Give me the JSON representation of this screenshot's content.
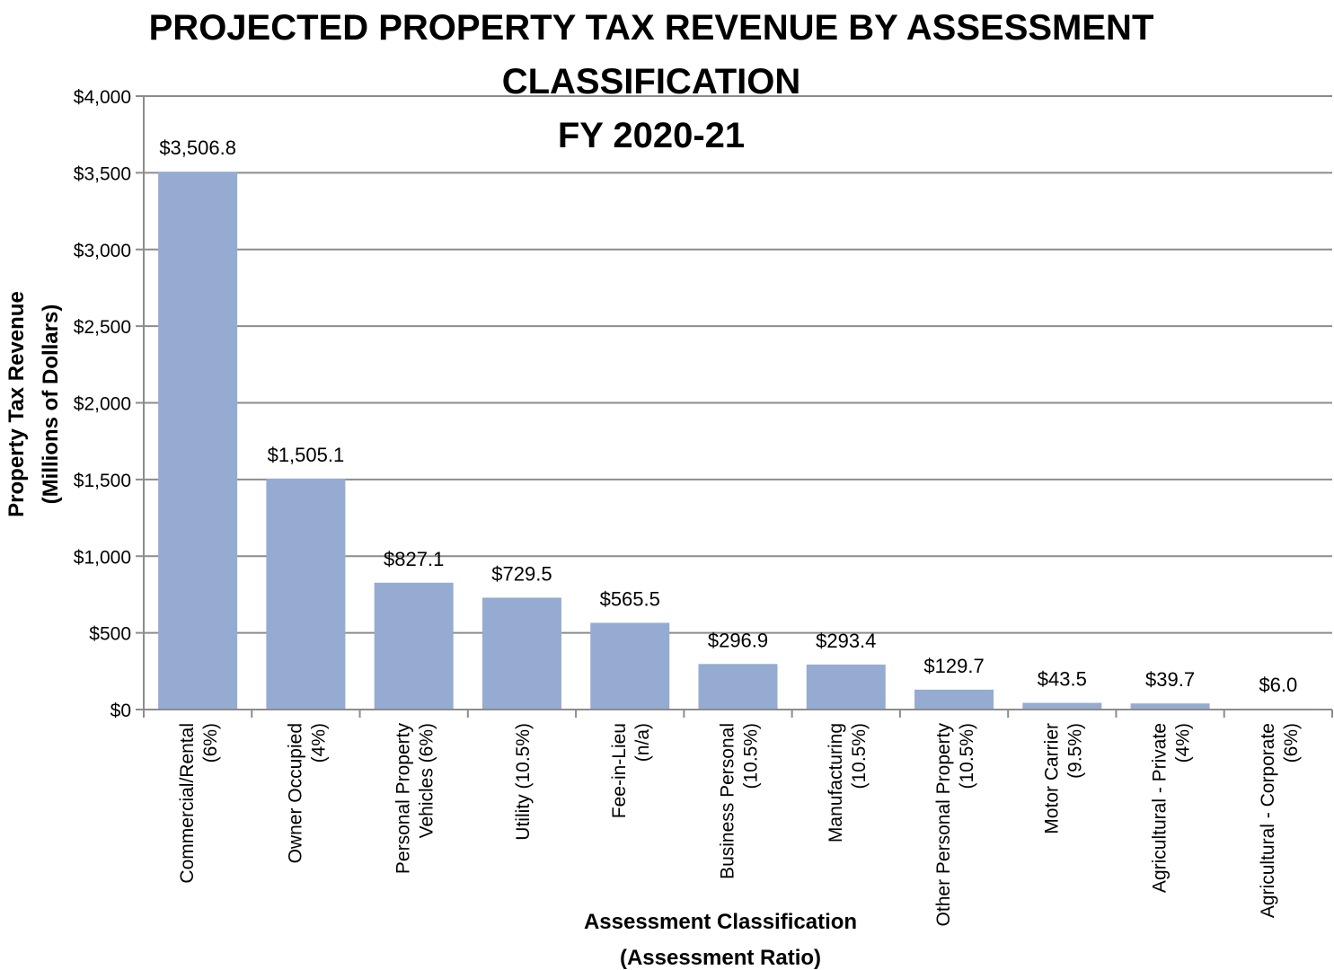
{
  "chart_data": {
    "type": "bar",
    "title_lines": [
      "PROJECTED PROPERTY TAX REVENUE BY ASSESSMENT",
      "CLASSIFICATION",
      "FY 2020-21"
    ],
    "ylabel_lines": [
      "Property Tax Revenue",
      "(Millions of Dollars)"
    ],
    "xlabel_lines": [
      "Assessment Classification",
      "(Assessment Ratio)"
    ],
    "ylim": [
      0,
      4000
    ],
    "yticks": [
      0,
      500,
      1000,
      1500,
      2000,
      2500,
      3000,
      3500,
      4000
    ],
    "ytick_labels": [
      "$0",
      "$500",
      "$1,000",
      "$1,500",
      "$2,000",
      "$2,500",
      "$3,000",
      "$3,500",
      "$4,000"
    ],
    "grid": true,
    "bar_color": "#95abd1",
    "grid_color": "#8c8c8c",
    "categories": [
      [
        "Commercial/Rental",
        "(6%)"
      ],
      [
        "Owner Occupied",
        "(4%)"
      ],
      [
        "Personal Property",
        "Vehicles (6%)"
      ],
      [
        "Utility (10.5%)"
      ],
      [
        "Fee-in-Lieu",
        "(n/a)"
      ],
      [
        "Business Personal",
        "(10.5%)"
      ],
      [
        "Manufacturing",
        "(10.5%)"
      ],
      [
        "Other Personal Property",
        "(10.5%)"
      ],
      [
        "Motor Carrier",
        "(9.5%)"
      ],
      [
        "Agricultural - Private",
        "(4%)"
      ],
      [
        "Agricultural - Corporate",
        "(6%)"
      ]
    ],
    "values": [
      3506.8,
      1505.1,
      827.1,
      729.5,
      565.5,
      296.9,
      293.4,
      129.7,
      43.5,
      39.7,
      6.0
    ],
    "value_labels": [
      "$3,506.8",
      "$1,505.1",
      "$827.1",
      "$729.5",
      "$565.5",
      "$296.9",
      "$293.4",
      "$129.7",
      "$43.5",
      "$39.7",
      "$6.0"
    ]
  }
}
